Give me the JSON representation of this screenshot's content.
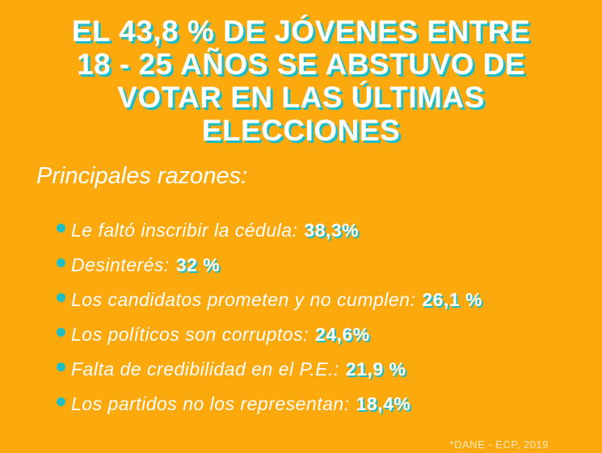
{
  "title_lines": [
    "EL 43,8 % DE JÓVENES ENTRE",
    "18 - 25 AÑOS SE ABSTUVO DE",
    "VOTAR EN LAS ÚLTIMAS",
    "ELECCIONES"
  ],
  "subtitle": "Principales razones:",
  "reasons": [
    {
      "label": "Le faltó inscribir la cédula:",
      "value": "38,3%"
    },
    {
      "label": "Desinterés:",
      "value": "32 %"
    },
    {
      "label": "Los candidatos prometen y no cumplen:",
      "value": "26,1 %"
    },
    {
      "label": "Los políticos son corruptos:",
      "value": "24,6%"
    },
    {
      "label": "Falta de credibilidad en el P.E.:",
      "value": "21,9 %"
    },
    {
      "label": "Los partidos no los representan:",
      "value": "18,4%"
    }
  ],
  "source": "*DANE - ECP, 2019",
  "colors": {
    "background": "#FBA90D",
    "accent": "#1FBDC4",
    "text": "#FFFFFF"
  }
}
